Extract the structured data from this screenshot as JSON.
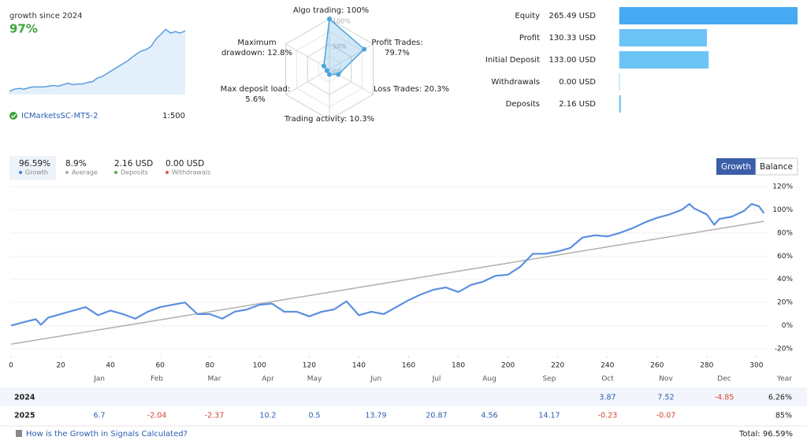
{
  "header": {
    "title": "growth since 2024",
    "growth": "97%",
    "account": "ICMarketsSC-MT5-2",
    "leverage": "1:500"
  },
  "sparkline": {
    "values": [
      2,
      5,
      6,
      5,
      7,
      8,
      8,
      8,
      9,
      10,
      9,
      11,
      13,
      11,
      12,
      12,
      14,
      15,
      20,
      22,
      26,
      30,
      34,
      38,
      42,
      47,
      52,
      56,
      58,
      62,
      72,
      78,
      85,
      80,
      82,
      80,
      83
    ],
    "color": "#5b9be0"
  },
  "radar": {
    "axes": [
      {
        "label": [
          "Algo trading: 100%"
        ],
        "value": 100
      },
      {
        "label": [
          "Profit Trades:",
          "79.7%"
        ],
        "value": 79.7
      },
      {
        "label": [
          "Loss Trades: 20.3%"
        ],
        "value": 20.3
      },
      {
        "label": [
          "Trading activity: 10.3%"
        ],
        "value": 10.3
      },
      {
        "label": [
          "Max deposit load:",
          "5.6%"
        ],
        "value": 5.6
      },
      {
        "label": [
          "Maximum",
          "drawdown: 12.8%"
        ],
        "value": 12.8
      }
    ],
    "ticks": [
      {
        "value": 0,
        "label": "0%"
      },
      {
        "value": 50,
        "label": "50%"
      },
      {
        "value": 100,
        "label": "100%"
      }
    ],
    "color": "#4aa3df"
  },
  "summary": {
    "rows": [
      {
        "label": "Equity",
        "value": 265.49,
        "value_label": "265.49 USD",
        "color": "#45aaf2"
      },
      {
        "label": "Profit",
        "value": 130.33,
        "value_label": "130.33 USD",
        "color": "#6cc3f5"
      },
      {
        "label": "Initial Deposit",
        "value": 133.0,
        "value_label": "133.00 USD",
        "color": "#6cc3f5"
      },
      {
        "label": "Withdrawals",
        "value": 0.0,
        "value_label": "0.00 USD",
        "color": "#6cc3f5"
      },
      {
        "label": "Deposits",
        "value": 2.16,
        "value_label": "2.16 USD",
        "color": "#6cc3f5"
      }
    ],
    "xlim": [
      0,
      265.49
    ]
  },
  "stats": [
    {
      "value": "96.59%",
      "label": "Growth",
      "color": "#3d7fd6"
    },
    {
      "value": "8.9%",
      "label": "Average",
      "color": "#aaaaaa"
    },
    {
      "value": "2.16 USD",
      "label": "Deposits",
      "color": "#4caf50"
    },
    {
      "value": "0.00 USD",
      "label": "Withdrawals",
      "color": "#e0583a"
    }
  ],
  "buttons": [
    "Growth",
    "Balance"
  ],
  "growth_chart": {
    "type": "line",
    "x": [
      0,
      5,
      10,
      12,
      15,
      20,
      25,
      30,
      35,
      40,
      45,
      50,
      55,
      60,
      65,
      70,
      75,
      80,
      85,
      90,
      95,
      100,
      105,
      110,
      115,
      120,
      125,
      130,
      135,
      140,
      145,
      150,
      155,
      160,
      165,
      170,
      175,
      180,
      185,
      190,
      195,
      200,
      205,
      210,
      215,
      220,
      225,
      230,
      235,
      240,
      245,
      250,
      255,
      260,
      265,
      270,
      273,
      275,
      280,
      283,
      285,
      290,
      295,
      298,
      301,
      303
    ],
    "series": [
      {
        "color": "#5b8fe0",
        "values": [
          0,
          3,
          5.5,
          0.7,
          7,
          10,
          13,
          16,
          9,
          13,
          10,
          6,
          12,
          16,
          18,
          20,
          10,
          10,
          6,
          12,
          14,
          18,
          19,
          12,
          12,
          8,
          12,
          14,
          21,
          9,
          12,
          10,
          16,
          22,
          27,
          31,
          33,
          29,
          35,
          38,
          43,
          44,
          51,
          62,
          62,
          64,
          67,
          76,
          78,
          77,
          80,
          84,
          89,
          93,
          96,
          100,
          105,
          101,
          96,
          87,
          92,
          94,
          99,
          105,
          103,
          97
        ]
      }
    ],
    "trend": {
      "x": [
        0,
        303
      ],
      "values": [
        -16,
        90
      ],
      "color": "#b0b0b0"
    },
    "xlim": [
      0,
      310
    ],
    "xticks": [
      0,
      20,
      40,
      60,
      80,
      100,
      120,
      140,
      160,
      180,
      200,
      220,
      240,
      260,
      280,
      300
    ],
    "ylim": [
      -25,
      125
    ],
    "yticks": [
      {
        "value": -20,
        "label": "-20%"
      },
      {
        "value": 0,
        "label": "0%"
      },
      {
        "value": 20,
        "label": "20%"
      },
      {
        "value": 40,
        "label": "40%"
      },
      {
        "value": 60,
        "label": "60%"
      },
      {
        "value": 80,
        "label": "80%"
      },
      {
        "value": 100,
        "label": "100%"
      },
      {
        "value": 120,
        "label": "120%"
      }
    ],
    "grid": true
  },
  "table": {
    "columns": [
      "Jan",
      "Feb",
      "Mar",
      "Apr",
      "May",
      "Jun",
      "Jul",
      "Aug",
      "Sep",
      "Oct",
      "Nov",
      "Dec",
      "Year"
    ],
    "rows": [
      {
        "year": "2024",
        "cells": [
          null,
          null,
          null,
          null,
          null,
          null,
          null,
          null,
          null,
          3.87,
          7.52,
          -4.85,
          {
            "value": 6.26,
            "label": "6.26%"
          }
        ]
      },
      {
        "year": "2025",
        "cells": [
          6.7,
          -2.04,
          -2.37,
          10.2,
          0.5,
          13.79,
          20.87,
          4.56,
          14.17,
          -0.23,
          -0.07,
          null,
          {
            "value": 85,
            "label": "85%"
          }
        ]
      }
    ]
  },
  "footer": {
    "link": "How is the Growth in Signals Calculated?",
    "total": "Total: 96.59%"
  }
}
